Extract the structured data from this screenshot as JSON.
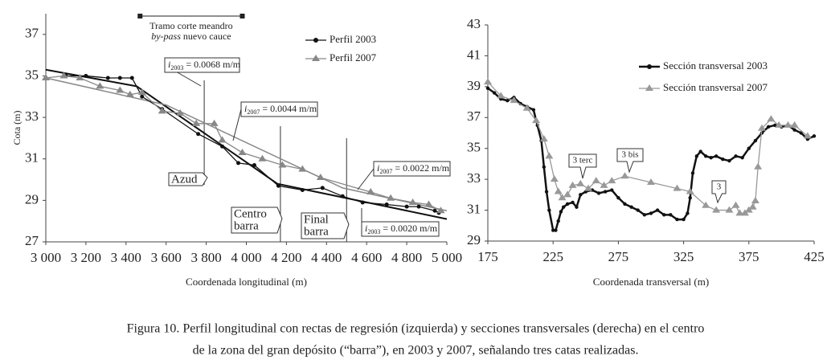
{
  "chart_data": [
    {
      "type": "line",
      "y_label": "Cota (m)",
      "x_label": "Coordenada longitudinal (m)",
      "xlim": [
        3000,
        5000
      ],
      "ylim": [
        27,
        38
      ],
      "xticks": [
        {
          "value": 3000,
          "label": "3 000"
        },
        {
          "value": 3200,
          "label": "3 200"
        },
        {
          "value": 3400,
          "label": "3 400"
        },
        {
          "value": 3600,
          "label": "3 600"
        },
        {
          "value": 3800,
          "label": "3 800"
        },
        {
          "value": 4000,
          "label": "4 000"
        },
        {
          "value": 4200,
          "label": "4 200"
        },
        {
          "value": 4400,
          "label": "4 400"
        },
        {
          "value": 4600,
          "label": "4 600"
        },
        {
          "value": 4800,
          "label": "4 800"
        },
        {
          "value": 5000,
          "label": "5 000"
        }
      ],
      "yticks": [
        27,
        29,
        31,
        33,
        35,
        37
      ],
      "series": [
        {
          "name": "Perfil 2003",
          "color": "#111111",
          "marker": "circle",
          "x": [
            3100,
            3200,
            3310,
            3370,
            3430,
            3480,
            3580,
            3760,
            3880,
            3960,
            4040,
            4160,
            4280,
            4380,
            4480,
            4580,
            4700,
            4800,
            4860,
            4940,
            4960
          ],
          "values": [
            35.0,
            35.0,
            34.9,
            34.9,
            34.9,
            34.0,
            33.4,
            32.2,
            31.6,
            30.8,
            30.7,
            29.7,
            29.5,
            29.6,
            29.2,
            28.9,
            28.8,
            28.7,
            28.7,
            28.5,
            28.4
          ]
        },
        {
          "name": "Perfil 2007",
          "color": "#888888",
          "marker": "triangle",
          "x": [
            3000,
            3090,
            3170,
            3270,
            3370,
            3420,
            3480,
            3580,
            3670,
            3750,
            3840,
            3880,
            3980,
            4080,
            4180,
            4280,
            4370,
            4620,
            4720,
            4830,
            4910,
            4970
          ],
          "values": [
            34.9,
            35.0,
            34.9,
            34.5,
            34.3,
            34.1,
            34.2,
            33.3,
            33.2,
            32.7,
            32.7,
            31.9,
            31.3,
            31.0,
            30.7,
            30.5,
            30.1,
            29.4,
            29.1,
            28.9,
            28.8,
            28.5
          ]
        }
      ],
      "regression_lines": [
        {
          "color": "#111111",
          "x": [
            3000,
            3453,
            4155,
            5000
          ],
          "values": [
            35.3,
            34.5,
            29.8,
            28.1
          ]
        },
        {
          "color": "#888888",
          "x": [
            3000,
            3600,
            4480,
            5000
          ],
          "values": [
            34.9,
            33.6,
            29.6,
            28.5
          ]
        }
      ],
      "annotations": [
        {
          "symbol": "i",
          "subscript": "2003",
          "text": " = 0.0068 m/m"
        },
        {
          "symbol": "i",
          "subscript": "2007",
          "text": " = 0.0044 m/m"
        },
        {
          "symbol": "i",
          "subscript": "2007",
          "text": " = 0.0022 m/m"
        },
        {
          "symbol": "i",
          "subscript": "2003",
          "text": " = 0.0020 m/m"
        }
      ],
      "markers": [
        {
          "lines": [
            "Azud"
          ],
          "x": 3790
        },
        {
          "lines": [
            "Centro",
            "barra"
          ],
          "x": 4170
        },
        {
          "lines": [
            "Final",
            "barra"
          ],
          "x": 4500
        }
      ],
      "span": {
        "x": [
          3470,
          3980
        ],
        "line1": "Tramo corte meandro",
        "italic": "by-pass",
        "line2": " nuevo cauce"
      }
    },
    {
      "type": "line",
      "x_label": "Coordenada transversal (m)",
      "xlim": [
        175,
        425
      ],
      "ylim": [
        29,
        43
      ],
      "xticks": [
        175,
        225,
        275,
        325,
        375,
        425
      ],
      "yticks": [
        29,
        31,
        33,
        35,
        37,
        39,
        41,
        43
      ],
      "series": [
        {
          "name": "Sección transversal 2003",
          "color": "#111111",
          "marker": "dot",
          "x": [
            175,
            180,
            185,
            190,
            195,
            200,
            205,
            210,
            213,
            216,
            218,
            220,
            222,
            225,
            227,
            229,
            231,
            233,
            236,
            240,
            243,
            246,
            250,
            255,
            260,
            265,
            270,
            275,
            280,
            285,
            290,
            295,
            300,
            305,
            310,
            315,
            320,
            325,
            328,
            330,
            332,
            335,
            338,
            342,
            346,
            350,
            355,
            360,
            365,
            370,
            375,
            380,
            385,
            390,
            395,
            400,
            405,
            410,
            415,
            420,
            425
          ],
          "values": [
            38.9,
            38.6,
            38.2,
            38.1,
            38.3,
            37.9,
            37.7,
            37.5,
            36.5,
            35.5,
            33.8,
            32.2,
            31.0,
            29.7,
            29.7,
            30.3,
            30.9,
            31.2,
            31.4,
            31.5,
            31.2,
            32.0,
            32.2,
            32.3,
            32.1,
            32.2,
            32.3,
            31.8,
            31.4,
            31.2,
            31.0,
            30.7,
            30.8,
            31.0,
            30.7,
            30.7,
            30.4,
            30.4,
            30.8,
            31.8,
            33.4,
            34.5,
            34.8,
            34.5,
            34.4,
            34.5,
            34.3,
            34.2,
            34.5,
            34.4,
            35.0,
            35.5,
            36.0,
            36.4,
            36.5,
            36.4,
            36.5,
            36.2,
            36.0,
            35.6,
            35.8
          ]
        },
        {
          "name": "Sección transversal 2007",
          "color": "#999999",
          "marker": "triangle",
          "x": [
            175,
            185,
            195,
            205,
            212,
            218,
            222,
            226,
            229,
            232,
            236,
            240,
            246,
            252,
            258,
            264,
            270,
            280,
            300,
            320,
            330,
            342,
            350,
            360,
            365,
            368,
            372,
            375,
            378,
            380,
            382,
            385,
            392,
            398,
            405,
            410,
            420
          ],
          "values": [
            39.3,
            38.4,
            38.1,
            37.6,
            36.8,
            35.6,
            34.5,
            33.0,
            32.2,
            31.8,
            32.0,
            32.6,
            32.7,
            32.4,
            32.9,
            32.6,
            32.9,
            33.2,
            32.8,
            32.4,
            32.2,
            31.3,
            31.0,
            31.0,
            31.3,
            30.8,
            30.8,
            31.0,
            31.2,
            31.6,
            33.8,
            36.3,
            36.9,
            36.5,
            36.5,
            36.5,
            35.8
          ]
        }
      ],
      "callouts": [
        "3 terc",
        "3 bis",
        "3"
      ]
    }
  ],
  "caption": [
    "Figura 10. Perfil longitudinal con rectas de regresión (izquierda) y secciones transversales (derecha) en el centro",
    "de la zona del gran depósito (“barra”), en 2003 y 2007, señalando tres catas realizadas."
  ]
}
